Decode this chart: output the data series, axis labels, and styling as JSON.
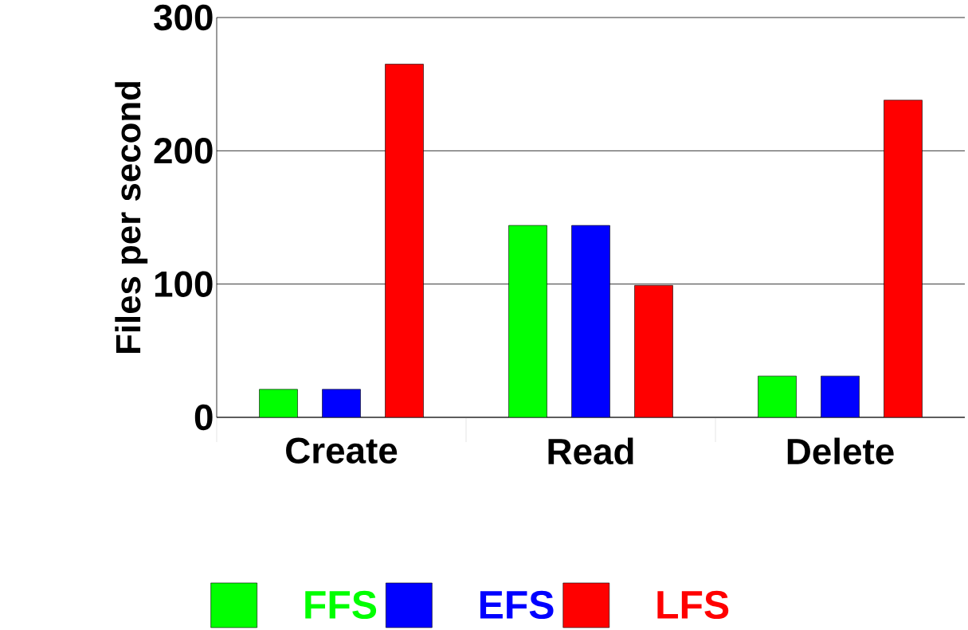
{
  "chart_data": {
    "type": "bar",
    "ylabel": "Files per second",
    "categories": [
      "Create",
      "Read",
      "Delete"
    ],
    "series": [
      {
        "name": "FFS",
        "color": "#00ff00",
        "values": [
          21,
          144,
          31
        ]
      },
      {
        "name": "EFS",
        "color": "#0000ff",
        "values": [
          21,
          144,
          31
        ]
      },
      {
        "name": "LFS",
        "color": "#ff0000",
        "values": [
          265,
          99,
          238
        ]
      }
    ],
    "ylim": [
      0,
      300
    ],
    "yticks": [
      0,
      100,
      200,
      300
    ],
    "grid": "y",
    "legend": "bottom"
  }
}
